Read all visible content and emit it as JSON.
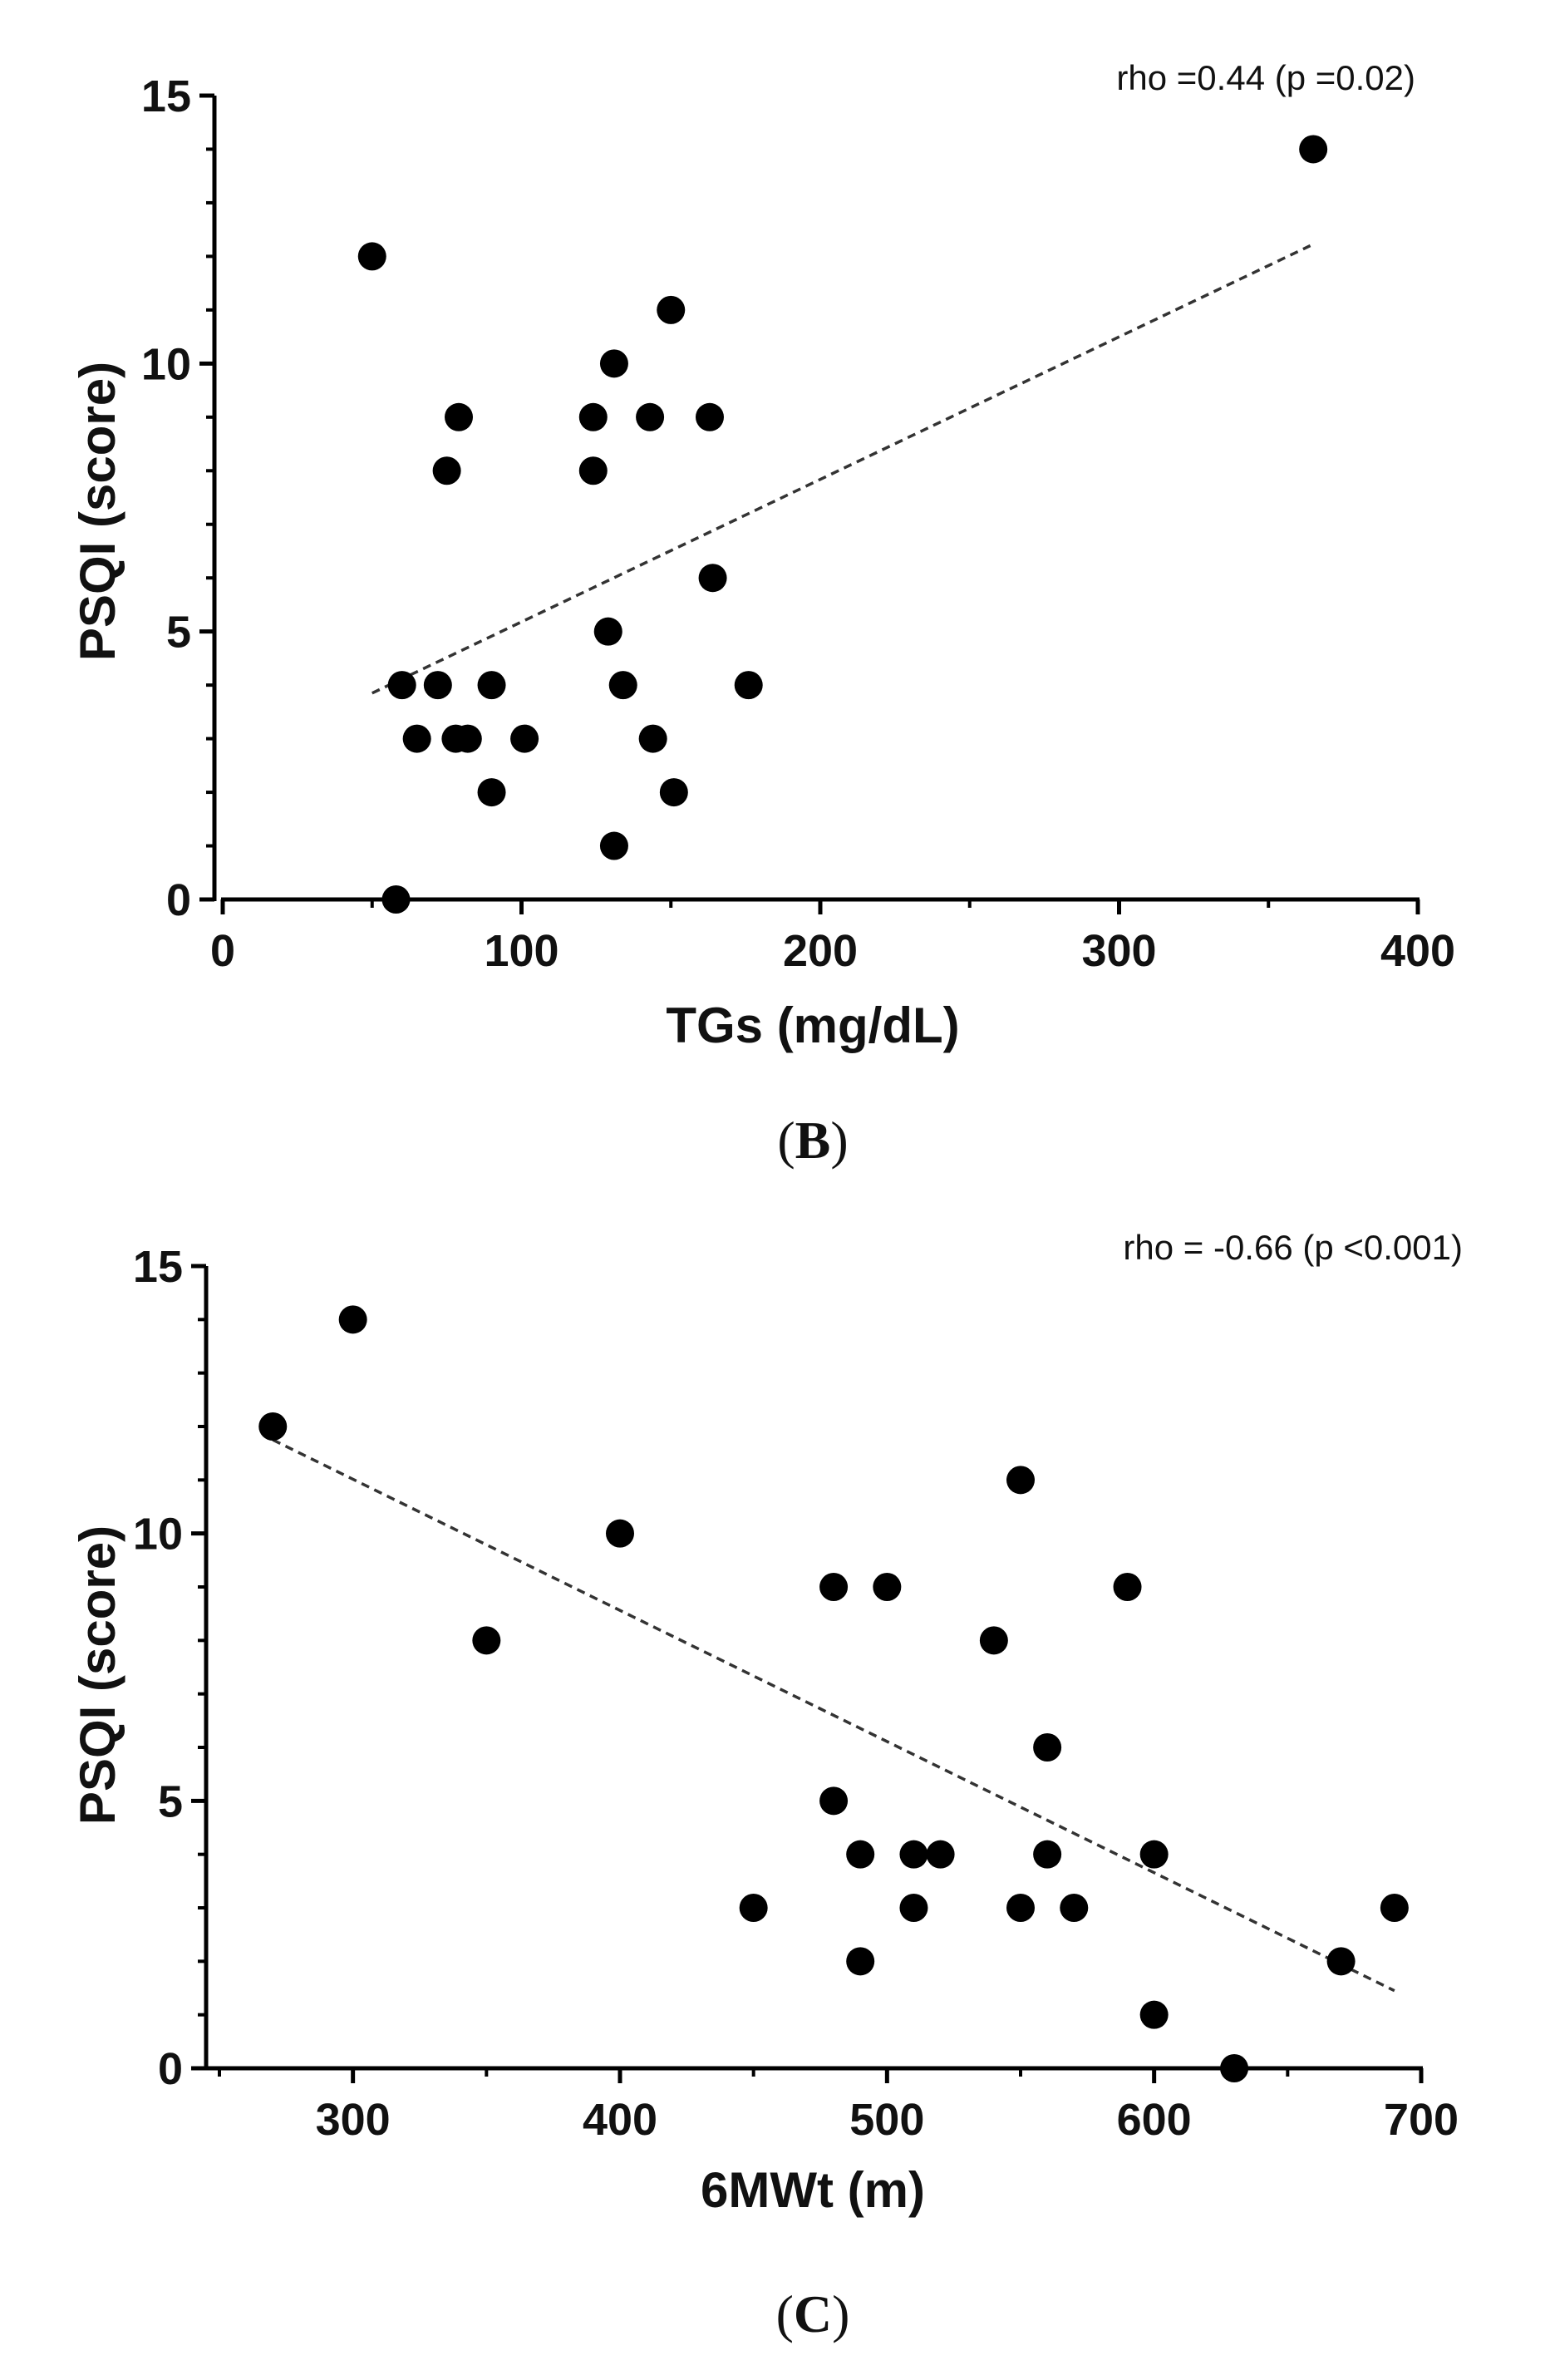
{
  "chart_data": [
    {
      "id": "B",
      "type": "scatter",
      "panel_label": "B",
      "annotation": "rho =0.44 (p =0.02)",
      "xlabel": "TGs (mg/dL)",
      "ylabel": "PSQI (score)",
      "xlim": [
        0,
        400
      ],
      "ylim": [
        0,
        15
      ],
      "xticks": [
        0,
        100,
        200,
        300,
        400
      ],
      "yticks": [
        0,
        5,
        10,
        15
      ],
      "grid": false,
      "trendline": {
        "x": [
          50,
          364
        ],
        "y": [
          3.85,
          12.2
        ]
      },
      "points": [
        {
          "x": 365,
          "y": 14
        },
        {
          "x": 50,
          "y": 12
        },
        {
          "x": 150,
          "y": 11
        },
        {
          "x": 131,
          "y": 10
        },
        {
          "x": 79,
          "y": 9
        },
        {
          "x": 124,
          "y": 9
        },
        {
          "x": 143,
          "y": 9
        },
        {
          "x": 163,
          "y": 9
        },
        {
          "x": 75,
          "y": 8
        },
        {
          "x": 124,
          "y": 8
        },
        {
          "x": 164,
          "y": 6
        },
        {
          "x": 129,
          "y": 5
        },
        {
          "x": 60,
          "y": 4
        },
        {
          "x": 72,
          "y": 4
        },
        {
          "x": 90,
          "y": 4
        },
        {
          "x": 134,
          "y": 4
        },
        {
          "x": 176,
          "y": 4
        },
        {
          "x": 65,
          "y": 3
        },
        {
          "x": 78,
          "y": 3
        },
        {
          "x": 82,
          "y": 3
        },
        {
          "x": 101,
          "y": 3
        },
        {
          "x": 144,
          "y": 3
        },
        {
          "x": 90,
          "y": 2
        },
        {
          "x": 151,
          "y": 2
        },
        {
          "x": 131,
          "y": 1
        },
        {
          "x": 58,
          "y": 0
        }
      ]
    },
    {
      "id": "C",
      "type": "scatter",
      "panel_label": "C",
      "annotation": "rho = -0.66 (p <0.001)",
      "xlabel": "6MWt (m)",
      "ylabel": "PSQI (score)",
      "xlim": [
        250,
        700
      ],
      "ylim": [
        0,
        15
      ],
      "xticks": [
        300,
        400,
        500,
        600,
        700
      ],
      "yticks": [
        0,
        5,
        10,
        15
      ],
      "grid": false,
      "trendline": {
        "x": [
          270,
          690
        ],
        "y": [
          11.75,
          1.45
        ]
      },
      "points": [
        {
          "x": 300,
          "y": 14
        },
        {
          "x": 270,
          "y": 12
        },
        {
          "x": 550,
          "y": 11
        },
        {
          "x": 400,
          "y": 10
        },
        {
          "x": 480,
          "y": 9
        },
        {
          "x": 500,
          "y": 9
        },
        {
          "x": 590,
          "y": 9
        },
        {
          "x": 350,
          "y": 8
        },
        {
          "x": 540,
          "y": 8
        },
        {
          "x": 560,
          "y": 6
        },
        {
          "x": 480,
          "y": 5
        },
        {
          "x": 490,
          "y": 4
        },
        {
          "x": 510,
          "y": 4
        },
        {
          "x": 520,
          "y": 4
        },
        {
          "x": 560,
          "y": 4
        },
        {
          "x": 600,
          "y": 4
        },
        {
          "x": 450,
          "y": 3
        },
        {
          "x": 510,
          "y": 3
        },
        {
          "x": 550,
          "y": 3
        },
        {
          "x": 570,
          "y": 3
        },
        {
          "x": 690,
          "y": 3
        },
        {
          "x": 490,
          "y": 2
        },
        {
          "x": 670,
          "y": 2
        },
        {
          "x": 600,
          "y": 1
        },
        {
          "x": 630,
          "y": 0
        }
      ]
    }
  ]
}
